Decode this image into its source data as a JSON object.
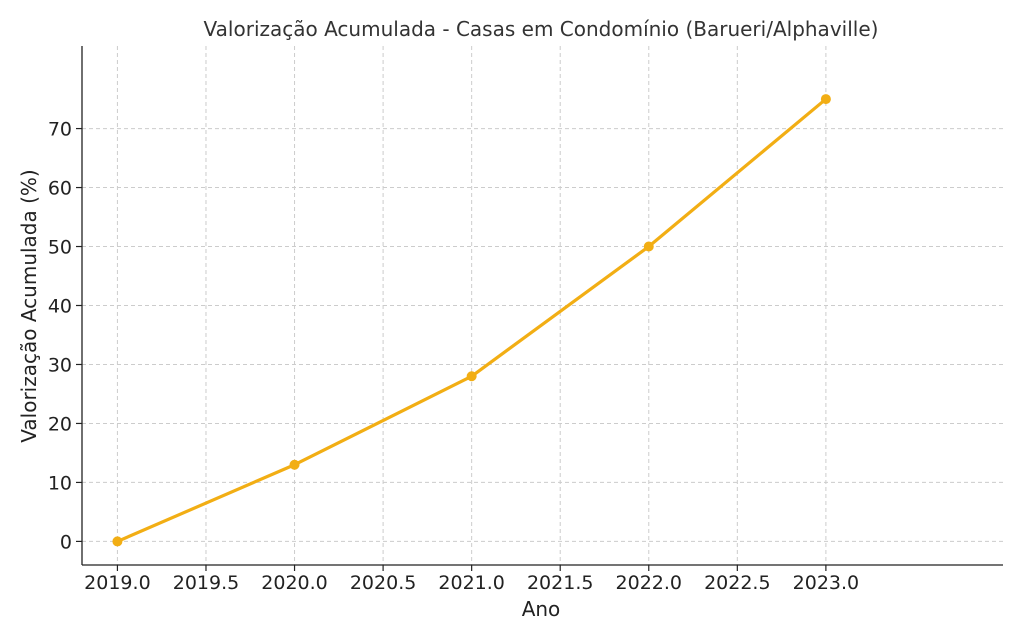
{
  "chart_data": {
    "type": "line",
    "title": "Valorização Acumulada - Casas em Condomínio (Barueri/Alphaville)",
    "xlabel": "Ano",
    "ylabel": "Valorização Acumulada (%)",
    "x": [
      2019,
      2020,
      2021,
      2022,
      2023
    ],
    "series": [
      {
        "values": [
          0,
          13,
          28,
          50,
          75
        ]
      }
    ],
    "xlim": [
      2018.8,
      2024.0
    ],
    "ylim": [
      -4,
      84
    ],
    "xticks": [
      2019.0,
      2019.5,
      2020.0,
      2020.5,
      2021.0,
      2021.5,
      2022.0,
      2022.5,
      2023.0
    ],
    "xtick_labels": [
      "2019.0",
      "2019.5",
      "2020.0",
      "2020.5",
      "2021.0",
      "2021.5",
      "2022.0",
      "2022.5",
      "2023.0"
    ],
    "yticks": [
      0,
      10,
      20,
      30,
      40,
      50,
      60,
      70
    ],
    "ytick_labels": [
      "0",
      "10",
      "20",
      "30",
      "40",
      "50",
      "60",
      "70"
    ],
    "grid": true,
    "line_color": "#F2AE14",
    "grid_color": "#cccccc"
  }
}
